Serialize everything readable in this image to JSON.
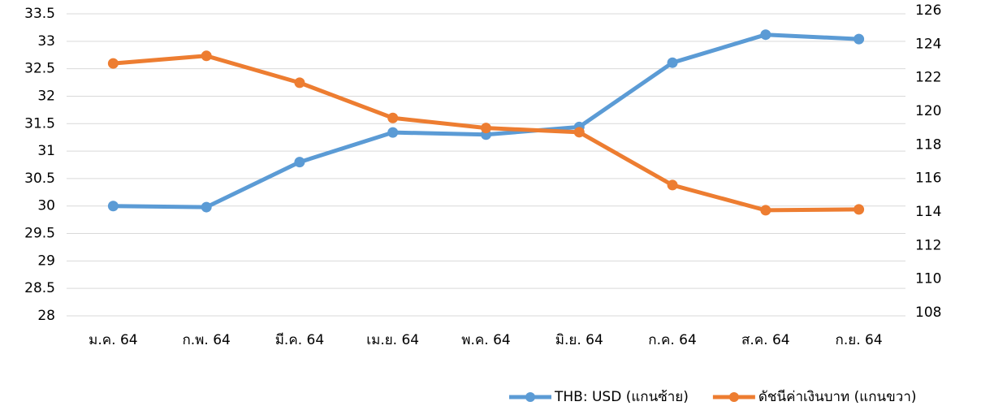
{
  "chart_data": {
    "type": "line",
    "categories": [
      "ม.ค. 64",
      "ก.พ. 64",
      "มี.ค. 64",
      "เม.ย. 64",
      "พ.ค. 64",
      "มิ.ย. 64",
      "ก.ค. 64",
      "ส.ค. 64",
      "ก.ย. 64"
    ],
    "series": [
      {
        "name": "THB: USD (แกนซ้าย)",
        "color": "#5b9bd5",
        "values": [
          30.0,
          29.98,
          30.8,
          31.34,
          31.3,
          31.44,
          32.61,
          33.12,
          33.04
        ]
      },
      {
        "name": "ดัชนีค่าเงินบาท (แกนขวา)",
        "color": "#ed7d31",
        "axis": "y2",
        "values": [
          122.85,
          123.3,
          121.7,
          119.6,
          119.0,
          118.75,
          115.6,
          114.1,
          114.15
        ]
      }
    ],
    "ylim": [
      28,
      33.5
    ],
    "yticks": [
      28,
      28.5,
      29,
      29.5,
      30,
      30.5,
      31,
      31.5,
      32,
      32.5,
      33,
      33.5
    ],
    "y2lim": [
      108,
      126
    ],
    "y2ticks": [
      108,
      110,
      112,
      114,
      116,
      118,
      120,
      122,
      124,
      126
    ],
    "grid": true,
    "legend": "bottom-right"
  }
}
